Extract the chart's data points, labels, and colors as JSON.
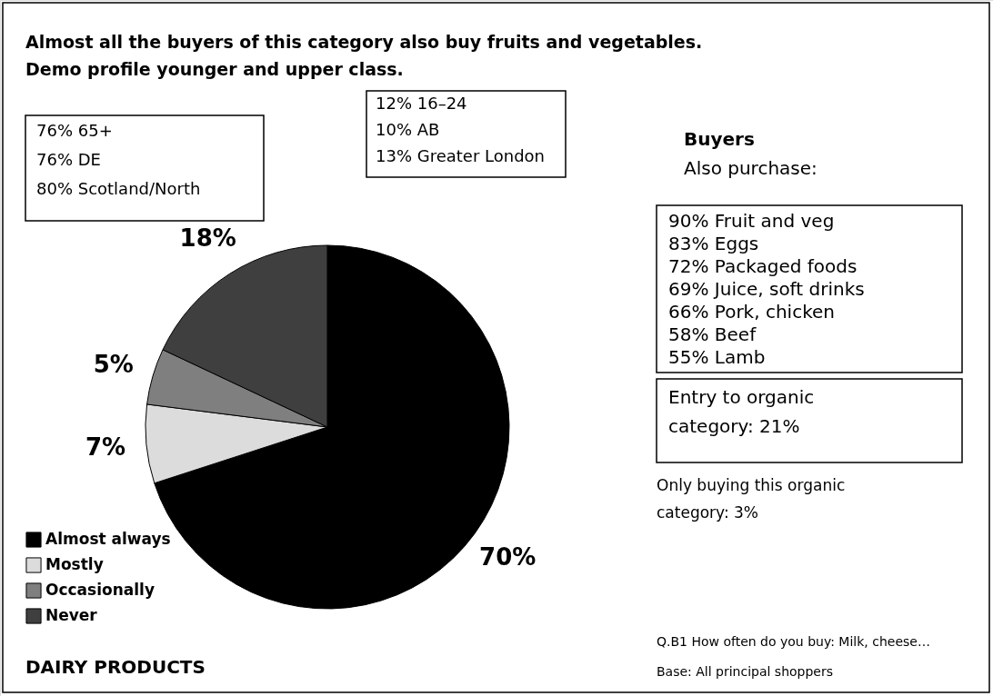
{
  "chart_data": {
    "type": "pie",
    "title": "Almost all the buyers of this category also buy fruits and vegetables.",
    "subtitle": "Demo profile younger and upper class.",
    "categories": [
      "Almost always",
      "Mostly",
      "Occasionally",
      "Never"
    ],
    "values": [
      70,
      7,
      5,
      18
    ],
    "colors": [
      "#000000",
      "#dcdcdc",
      "#7f7f7f",
      "#3f3f3f"
    ],
    "value_labels": [
      "70%",
      "7%",
      "5%",
      "18%"
    ],
    "legend": "bottom left",
    "annotations": [
      "76% 65+\n76% DE\n80% Scotland/North",
      "12% 16–24\n10% AB\n13% Greater London",
      "Buyers",
      "Also purchase:",
      "90% Fruit and veg\n83% Eggs\n72% Packaged foods\n69% Juice, soft drinks\n66% Pork, chicken\n58% Beef\n55% Lamb",
      "Entry to organic\ncategory: 21%",
      "Only buying this organic\ncategory: 3%",
      "Q.B1 How often do you buy: Milk, cheese…",
      "Base: All principal shoppers",
      "DAIRY PRODUCTS"
    ]
  }
}
